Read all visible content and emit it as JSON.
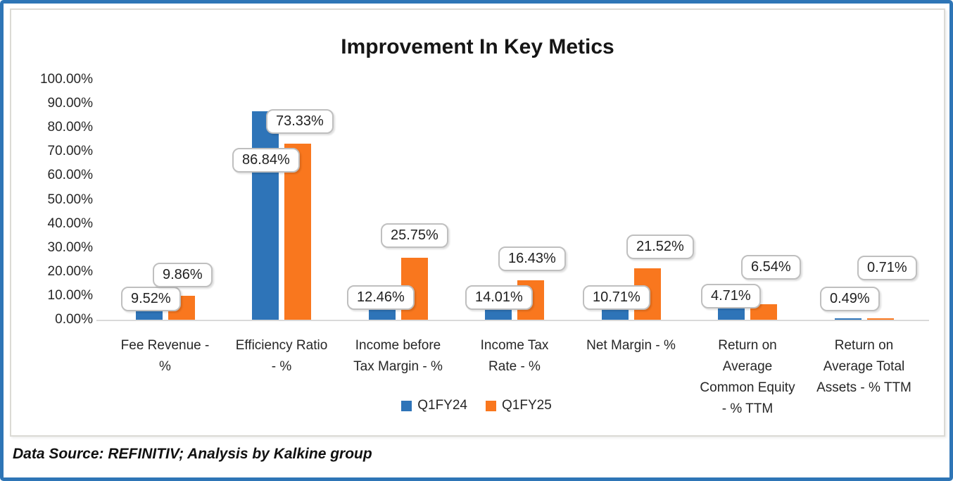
{
  "chart": {
    "title": "Improvement In Key Metics",
    "footer": "Data Source: REFINITIV; Analysis by Kalkine group"
  },
  "chart_data": {
    "type": "bar",
    "title": "Improvement In Key Metics",
    "categories": [
      "Fee Revenue - %",
      "Efficiency Ratio - %",
      "Income before Tax Margin - %",
      "Income Tax Rate - %",
      "Net Margin - %",
      "Return on Average Common Equity - % TTM",
      "Return on Average Total Assets - % TTM"
    ],
    "category_display_lines": [
      [
        "Fee Revenue -",
        "%"
      ],
      [
        "Efficiency Ratio",
        "- %"
      ],
      [
        "Income before",
        "Tax Margin - %"
      ],
      [
        "Income Tax",
        "Rate - %"
      ],
      [
        "Net Margin - %"
      ],
      [
        "Return on",
        "Average",
        "Common Equity",
        "- %  TTM"
      ],
      [
        "Return on",
        "Average Total",
        "Assets - % TTM"
      ]
    ],
    "series": [
      {
        "name": "Q1FY24",
        "color": "#2E74B8",
        "values": [
          9.52,
          86.84,
          12.46,
          14.01,
          10.71,
          4.71,
          0.49
        ]
      },
      {
        "name": "Q1FY25",
        "color": "#F9771E",
        "values": [
          9.86,
          73.33,
          25.75,
          16.43,
          21.52,
          6.54,
          0.71
        ]
      }
    ],
    "data_labels": {
      "Q1FY24": [
        "9.52%",
        "86.84%",
        "12.46%",
        "14.01%",
        "10.71%",
        "4.71%",
        "0.49%"
      ],
      "Q1FY25": [
        "9.86%",
        "73.33%",
        "25.75%",
        "16.43%",
        "21.52%",
        "6.54%",
        "0.71%"
      ]
    },
    "xlabel": "",
    "ylabel": "",
    "ylim": [
      0,
      100
    ],
    "y_tick_step": 10,
    "y_tick_labels": [
      "0.00%",
      "10.00%",
      "20.00%",
      "30.00%",
      "40.00%",
      "50.00%",
      "60.00%",
      "70.00%",
      "80.00%",
      "90.00%",
      "100.00%"
    ],
    "grid": false,
    "legend_position": "bottom",
    "legend": [
      "Q1FY24",
      "Q1FY25"
    ]
  },
  "colors": {
    "series_q1fy24": "#2E74B8",
    "series_q1fy25": "#F9771E",
    "outer_border": "#2E75B6",
    "chart_box_border": "#D9D9D9",
    "axis_line": "#D9D9D9",
    "callout_border": "#BFBFBF",
    "text": "#1A1A1A"
  }
}
